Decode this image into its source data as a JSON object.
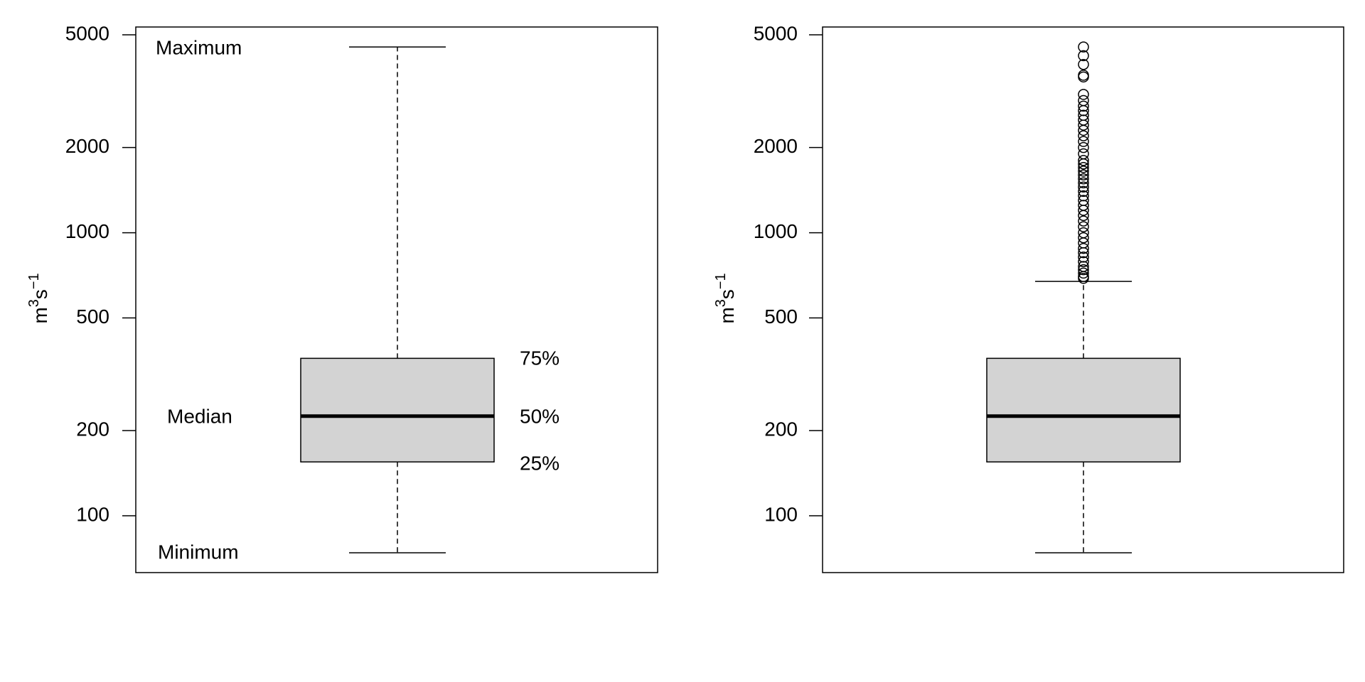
{
  "chart_data": [
    {
      "type": "box",
      "log_y": true,
      "ylim": [
        63,
        5330
      ],
      "yticks": [
        100,
        200,
        500,
        1000,
        2000,
        5000
      ],
      "y_label": [
        "m",
        "3",
        "s",
        "−1"
      ],
      "box_color": "#d3d3d3",
      "stats": {
        "whisker_low": 74,
        "q1": 155,
        "median": 225,
        "q3": 360,
        "whisker_high": 4530
      },
      "outliers": [],
      "annotations": [
        "Maximum",
        "Minimum",
        "Median",
        "75%",
        "50%",
        "25%"
      ]
    },
    {
      "type": "box",
      "log_y": true,
      "ylim": [
        63,
        5330
      ],
      "yticks": [
        100,
        200,
        500,
        1000,
        2000,
        5000
      ],
      "y_label": [
        "m",
        "3",
        "s",
        "−1"
      ],
      "box_color": "#d3d3d3",
      "stats": {
        "whisker_low": 74,
        "q1": 155,
        "median": 225,
        "q3": 360,
        "whisker_high": 673
      },
      "outliers": [
        4530,
        4220,
        3930,
        3600,
        3550,
        3080,
        2930,
        2800,
        2700,
        2600,
        2500,
        2400,
        2300,
        2200,
        2100,
        2000,
        1900,
        1800,
        1750,
        1700,
        1650,
        1600,
        1550,
        1500,
        1450,
        1400,
        1350,
        1300,
        1250,
        1200,
        1150,
        1100,
        1050,
        1000,
        960,
        920,
        880,
        850,
        820,
        790,
        760,
        740,
        720,
        700,
        690
      ],
      "annotations": []
    }
  ]
}
